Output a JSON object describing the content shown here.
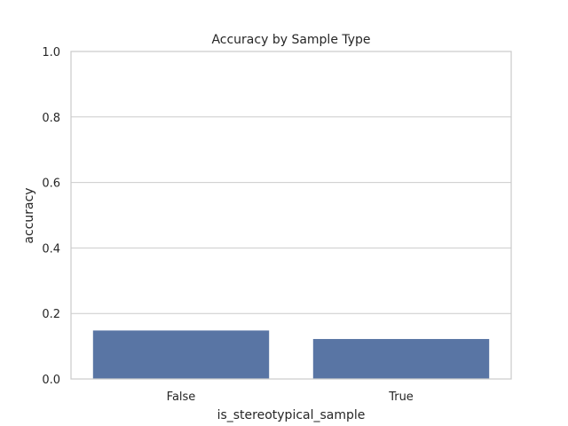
{
  "chart_data": {
    "type": "bar",
    "title": "Accuracy by Sample Type",
    "xlabel": "is_stereotypical_sample",
    "ylabel": "accuracy",
    "categories": [
      "False",
      "True"
    ],
    "values": [
      0.148,
      0.122
    ],
    "ylim": [
      0,
      1.0
    ],
    "yticks": [
      "0.0",
      "0.2",
      "0.4",
      "0.6",
      "0.8",
      "1.0"
    ],
    "grid": "y",
    "bar_color": "#5975a4"
  }
}
